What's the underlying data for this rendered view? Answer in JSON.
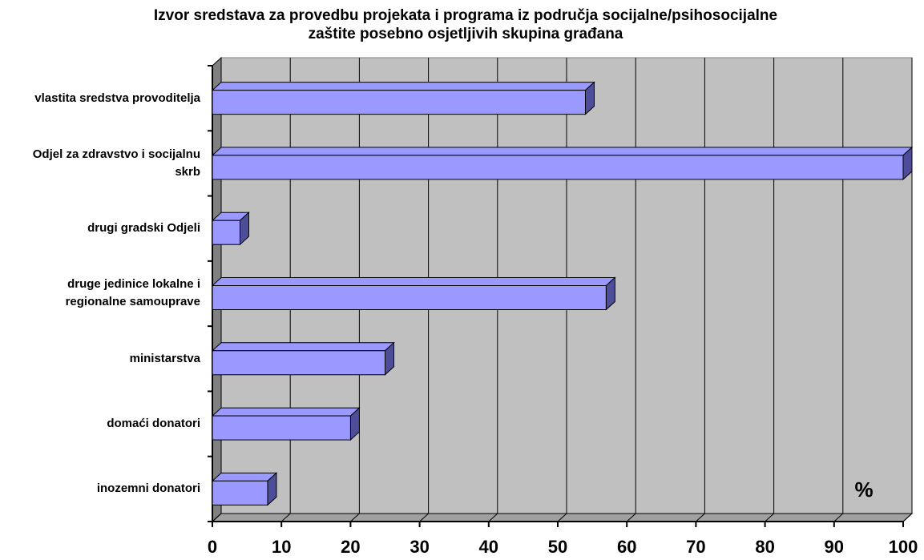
{
  "chart_data": {
    "type": "bar",
    "orientation": "horizontal",
    "title": "Izvor sredstava za provedbu projekata i programa iz područja socijalne/psihosocijalne zaštite posebno osjetljivih skupina građana",
    "categories": [
      "vlastita sredstva provoditelja",
      "Odjel za zdravstvo i socijalnu skrb",
      "drugi gradski Odjeli",
      "druge jedinice lokalne i regionalne samouprave",
      "ministarstva",
      "domaći donatori",
      "inozemni donatori"
    ],
    "values": [
      54,
      100,
      4,
      57,
      25,
      20,
      8
    ],
    "color": "#9999ff",
    "xlim": [
      0,
      100
    ],
    "xticks": [
      0,
      10,
      20,
      30,
      40,
      50,
      60,
      70,
      80,
      90,
      100
    ],
    "grid": true,
    "annotation": "%"
  }
}
